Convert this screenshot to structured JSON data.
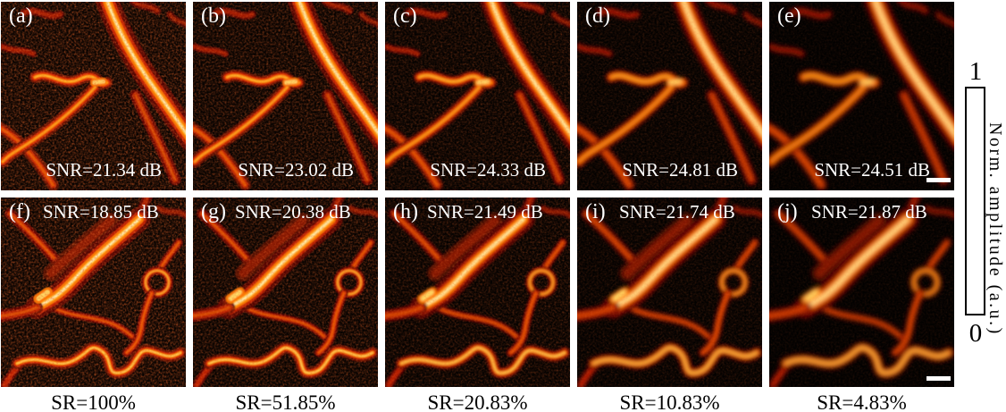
{
  "figure": {
    "panels": [
      {
        "label": "(a)",
        "snr": "SNR=21.34 dB"
      },
      {
        "label": "(b)",
        "snr": "SNR=23.02 dB"
      },
      {
        "label": "(c)",
        "snr": "SNR=24.33 dB"
      },
      {
        "label": "(d)",
        "snr": "SNR=24.81 dB"
      },
      {
        "label": "(e)",
        "snr": "SNR=24.51 dB"
      },
      {
        "label": "(f)",
        "snr": "SNR=18.85 dB"
      },
      {
        "label": "(g)",
        "snr": "SNR=20.38 dB"
      },
      {
        "label": "(h)",
        "snr": "SNR=21.49 dB"
      },
      {
        "label": "(i)",
        "snr": "SNR=21.74 dB"
      },
      {
        "label": "(j)",
        "snr": "SNR=21.87 dB"
      }
    ],
    "captions": [
      "SR=100%",
      "SR=51.85%",
      "SR=20.83%",
      "SR=10.83%",
      "SR=4.83%"
    ],
    "colorbar": {
      "max_label": "1",
      "min_label": "0",
      "axis_label": "Norm. amplitude (a.u.)",
      "colormap": "hot"
    },
    "colors": {
      "panel_background": "#000000",
      "overlay_text": "#ffffff",
      "caption_text": "#000000"
    }
  }
}
